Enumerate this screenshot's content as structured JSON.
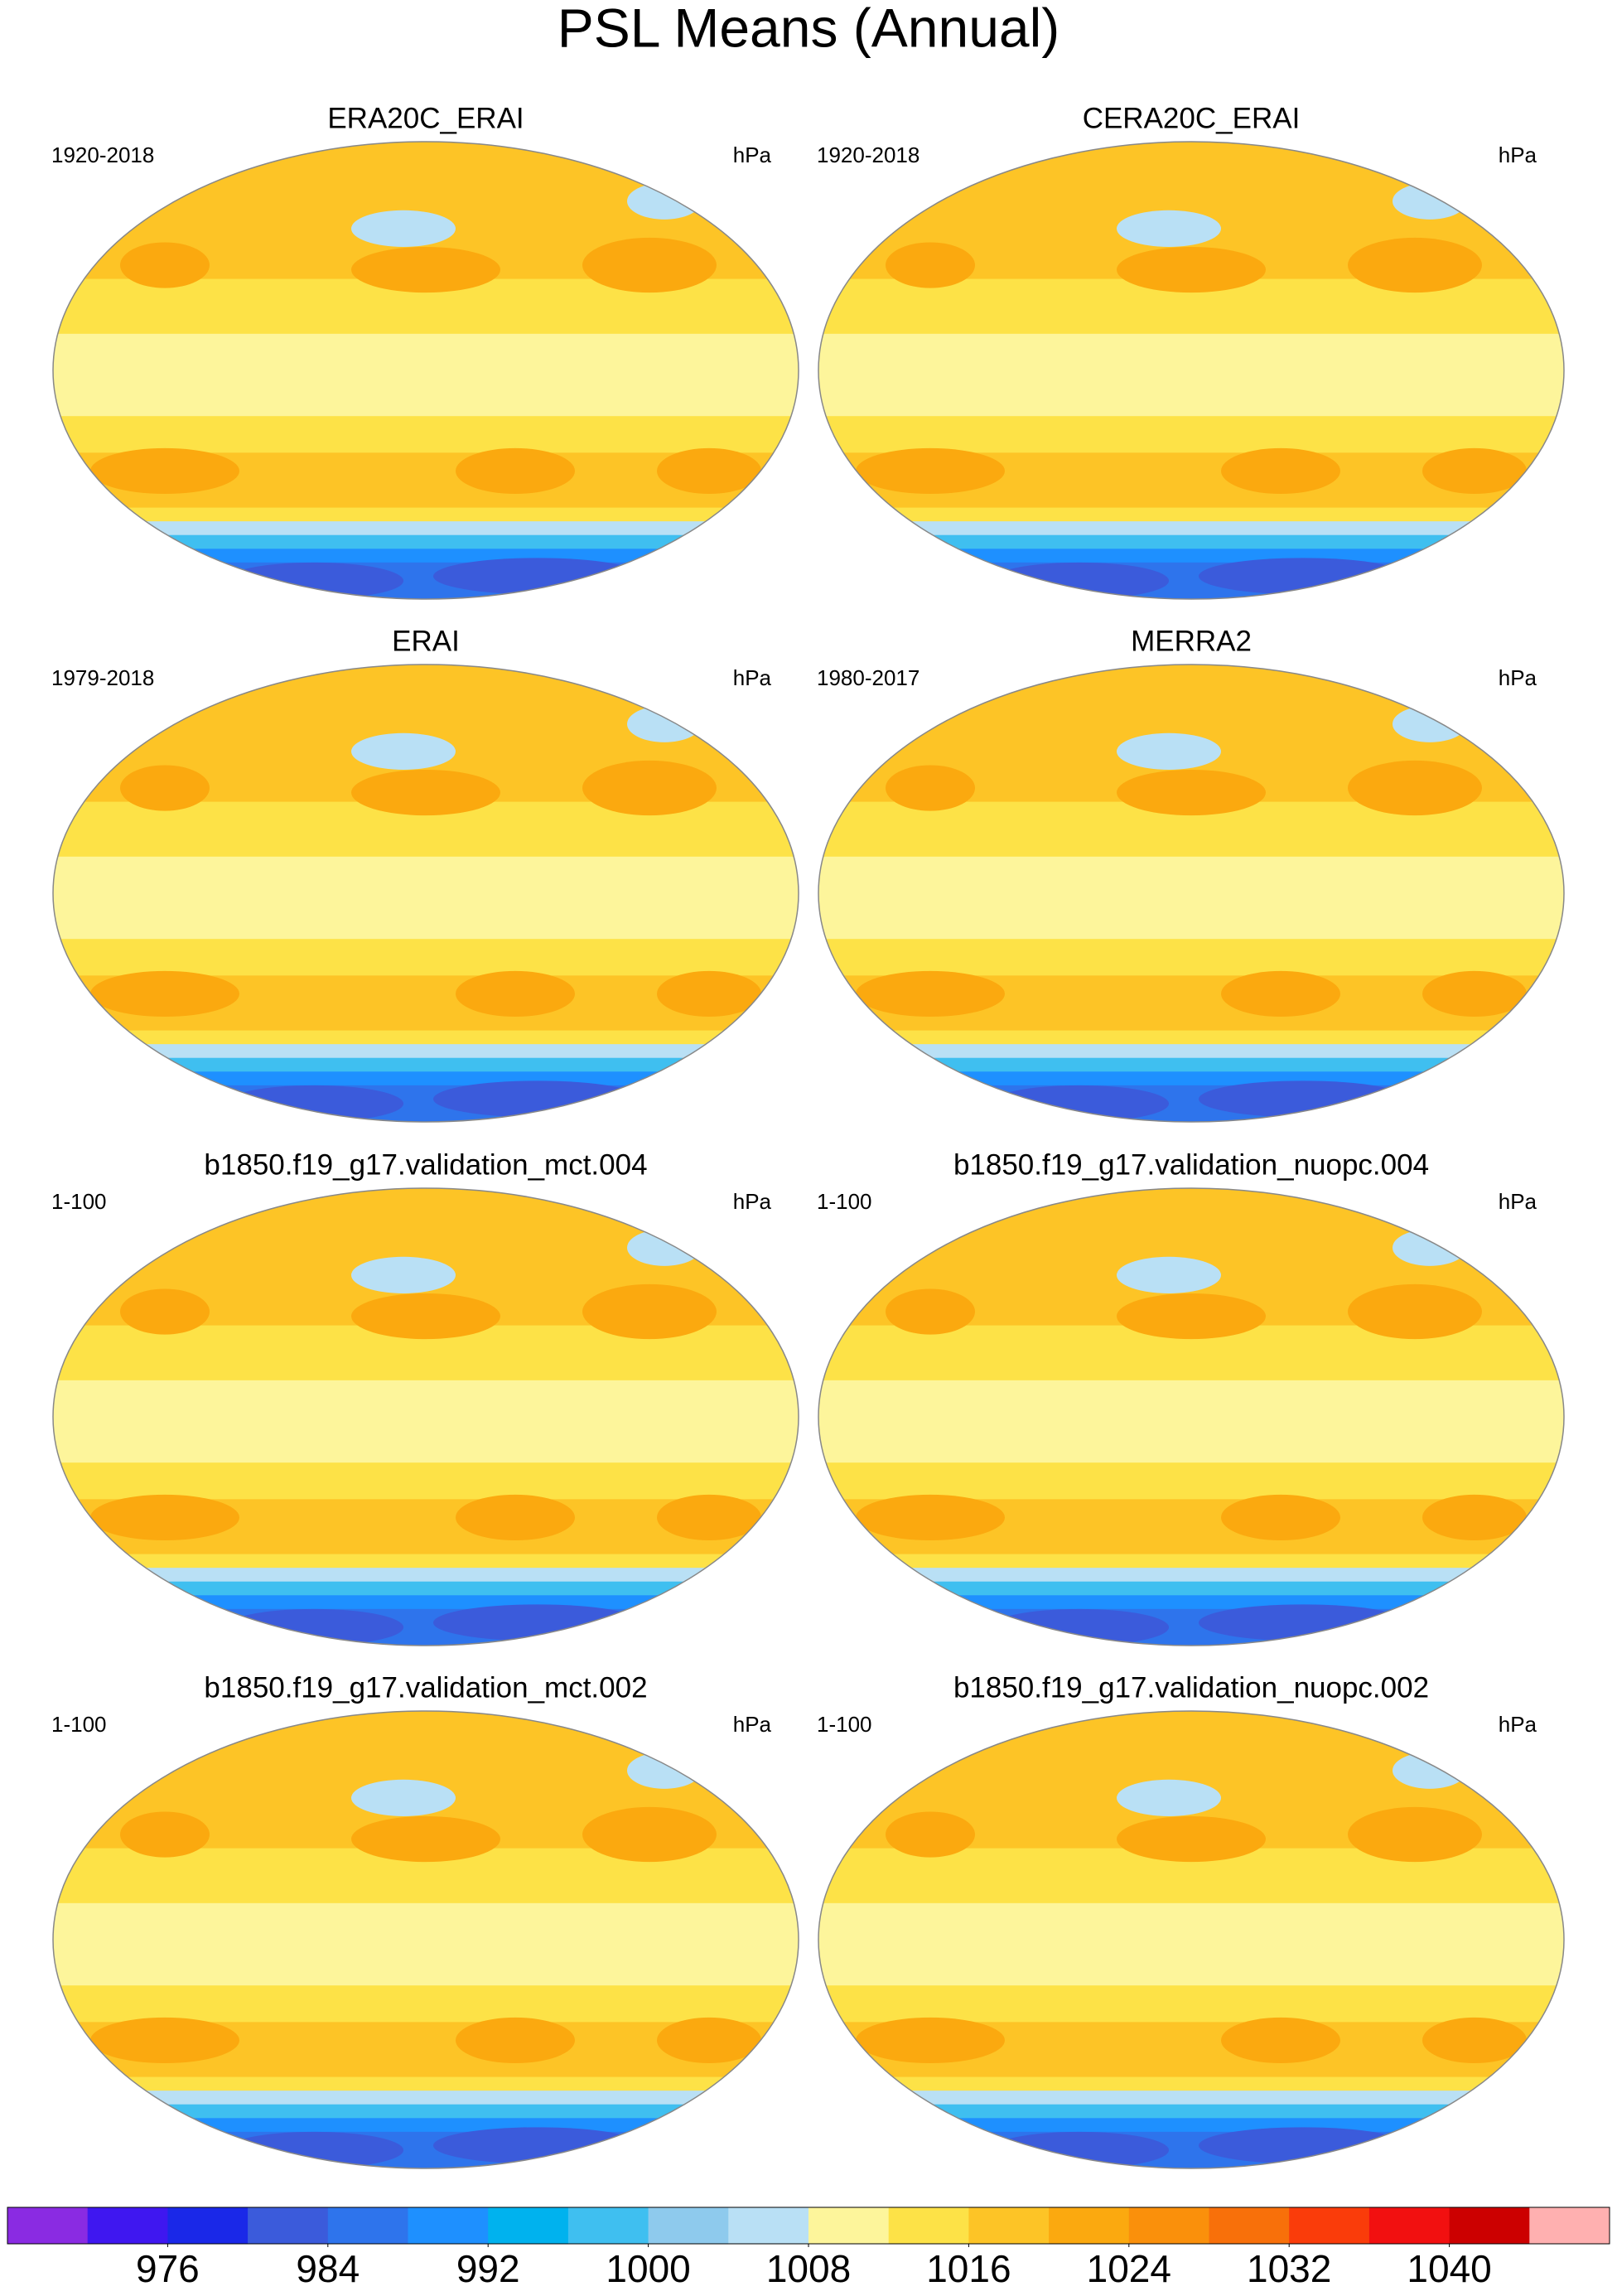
{
  "title": "PSL Means (Annual)",
  "panels": [
    {
      "title": "ERA20C_ERAI",
      "period": "1920-2018",
      "units": "hPa"
    },
    {
      "title": "CERA20C_ERAI",
      "period": "1920-2018",
      "units": "hPa"
    },
    {
      "title": "ERAI",
      "period": "1979-2018",
      "units": "hPa"
    },
    {
      "title": "MERRA2",
      "period": "1980-2017",
      "units": "hPa"
    },
    {
      "title": "b1850.f19_g17.validation_mct.004",
      "period": "1-100",
      "units": "hPa"
    },
    {
      "title": "b1850.f19_g17.validation_nuopc.004",
      "period": "1-100",
      "units": "hPa"
    },
    {
      "title": "b1850.f19_g17.validation_mct.002",
      "period": "1-100",
      "units": "hPa"
    },
    {
      "title": "b1850.f19_g17.validation_nuopc.002",
      "period": "1-100",
      "units": "hPa"
    }
  ],
  "colorbar": {
    "colors": [
      "#8a2be2",
      "#3f17f0",
      "#1a28e8",
      "#3b5bdb",
      "#2e74ec",
      "#1e90ff",
      "#00b2ee",
      "#3fbff0",
      "#8ecaed",
      "#b9e0f5",
      "#fdf59b",
      "#fde247",
      "#fdc426",
      "#fba90f",
      "#fa900b",
      "#f8700a",
      "#fa3c0a",
      "#f21010",
      "#cc0000",
      "#d94040",
      "#ffb0b0"
    ],
    "levels": [
      972,
      976,
      980,
      984,
      988,
      992,
      996,
      1000,
      1004,
      1008,
      1012,
      1016,
      1020,
      1024,
      1028,
      1032,
      1036,
      1040,
      1044
    ],
    "ticks": [
      976,
      984,
      992,
      1000,
      1008,
      1016,
      1024,
      1032,
      1040
    ]
  }
}
